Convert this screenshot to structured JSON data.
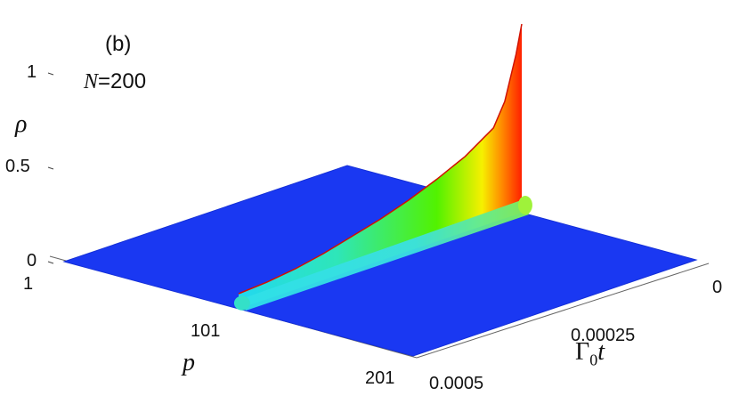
{
  "figure": {
    "panel_label": "(b)",
    "annotation": {
      "symbol": "N",
      "text": "=200"
    }
  },
  "axes": {
    "z": {
      "label": "ρ"
    },
    "p": {
      "label": "p"
    },
    "t": {
      "label_main": "Γ",
      "label_sub": "0",
      "label_var": "t"
    }
  },
  "chart_data": {
    "type": "surface-3d",
    "title": "",
    "zlim": [
      0,
      1
    ],
    "z_ticks": [
      "1",
      "0.5",
      "0"
    ],
    "p_range": [
      1,
      201
    ],
    "p_ticks": [
      "1",
      "101",
      "201"
    ],
    "t_range": [
      0,
      0.0005
    ],
    "t_ticks": [
      "0",
      "0.00025",
      "0.0005"
    ],
    "grid": false,
    "color_scale": [
      "#1a38f2",
      "#22d8f0",
      "#52f200",
      "#f6f000",
      "#ff2000"
    ],
    "ridge": {
      "p": 101,
      "points": [
        {
          "t": 0.0,
          "rho": 1.0
        },
        {
          "t": 1e-05,
          "rho": 0.85
        },
        {
          "t": 3e-05,
          "rho": 0.62
        },
        {
          "t": 5e-05,
          "rho": 0.5
        },
        {
          "t": 0.0001,
          "rho": 0.4
        },
        {
          "t": 0.00015,
          "rho": 0.33
        },
        {
          "t": 0.0002,
          "rho": 0.27
        },
        {
          "t": 0.00025,
          "rho": 0.22
        },
        {
          "t": 0.0003,
          "rho": 0.18
        },
        {
          "t": 0.00035,
          "rho": 0.14
        },
        {
          "t": 0.0004,
          "rho": 0.11
        },
        {
          "t": 0.00045,
          "rho": 0.09
        },
        {
          "t": 0.0005,
          "rho": 0.08
        }
      ]
    },
    "side_ridge": {
      "p": 101,
      "points": [
        {
          "t": 0.0,
          "rho": 0.09
        },
        {
          "t": 0.00025,
          "rho": 0.08
        },
        {
          "t": 0.0005,
          "rho": 0.07
        }
      ]
    },
    "background_rho": 0
  }
}
